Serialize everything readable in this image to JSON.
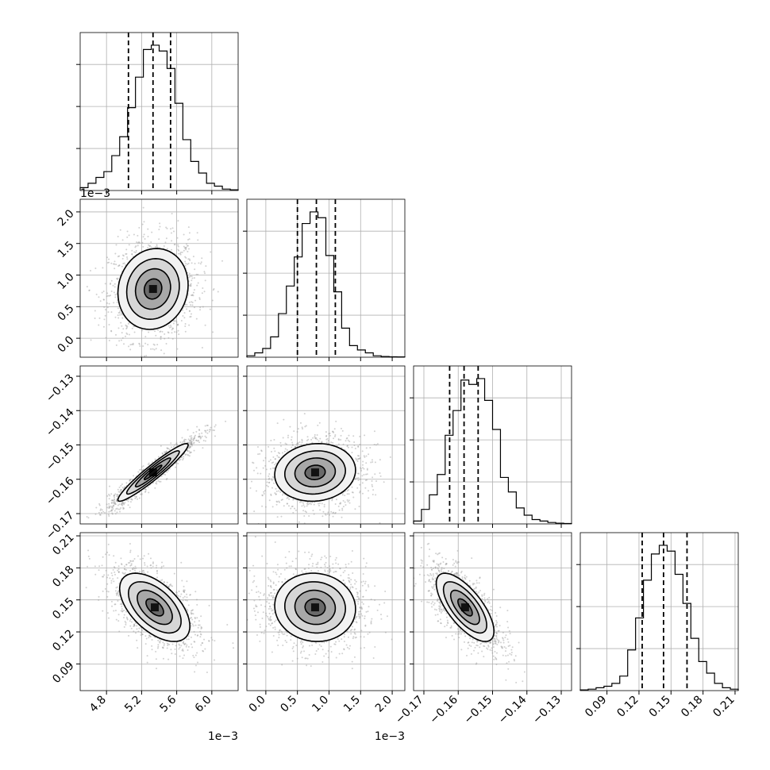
{
  "chart_data": {
    "type": "corner",
    "description_free": true,
    "parameters": [
      {
        "range": [
          4.5,
          6.3
        ],
        "ticks": [
          4.8,
          5.2,
          5.6,
          6.0
        ],
        "tick_labels": [
          "4.8",
          "5.2",
          "5.6",
          "6.0"
        ],
        "scale_note": "1e−3",
        "scale": 0.001
      },
      {
        "range": [
          -0.3,
          2.2
        ],
        "ticks": [
          0.0,
          0.5,
          1.0,
          1.5,
          2.0
        ],
        "tick_labels": [
          "0.0",
          "0.5",
          "1.0",
          "1.5",
          "2.0"
        ],
        "scale_note": "1e−3",
        "scale": 0.001
      },
      {
        "range": [
          -0.173,
          -0.127
        ],
        "ticks": [
          -0.17,
          -0.16,
          -0.15,
          -0.14,
          -0.13
        ],
        "tick_labels": [
          "−0.17",
          "−0.16",
          "−0.15",
          "−0.14",
          "−0.13"
        ],
        "scale_note": "",
        "scale": 1
      },
      {
        "range": [
          0.065,
          0.213
        ],
        "ticks": [
          0.09,
          0.12,
          0.15,
          0.18,
          0.21
        ],
        "tick_labels": [
          "0.09",
          "0.12",
          "0.15",
          "0.18",
          "0.21"
        ],
        "scale_note": "",
        "scale": 1
      }
    ],
    "quantiles": [
      [
        5.05,
        5.33,
        5.53
      ],
      [
        0.5,
        0.8,
        1.1
      ],
      [
        -0.1625,
        -0.1583,
        -0.1542
      ],
      [
        0.123,
        0.143,
        0.165
      ]
    ],
    "histograms": [
      {
        "edges_start": 4.5,
        "bin_width": 0.09,
        "counts": [
          0.02,
          0.05,
          0.09,
          0.13,
          0.24,
          0.37,
          0.57,
          0.78,
          0.97,
          1.0,
          0.96,
          0.84,
          0.6,
          0.35,
          0.2,
          0.12,
          0.05,
          0.03,
          0.01,
          0.005
        ]
      },
      {
        "edges_start": -0.3,
        "bin_width": 0.125,
        "counts": [
          0.01,
          0.03,
          0.06,
          0.14,
          0.3,
          0.49,
          0.69,
          0.92,
          1.0,
          0.96,
          0.7,
          0.45,
          0.2,
          0.08,
          0.05,
          0.03,
          0.01,
          0.005,
          0.003,
          0.002
        ]
      },
      {
        "edges_start": -0.173,
        "bin_width": 0.0023,
        "counts": [
          0.02,
          0.1,
          0.2,
          0.34,
          0.61,
          0.78,
          0.99,
          0.96,
          1.0,
          0.85,
          0.65,
          0.32,
          0.22,
          0.11,
          0.06,
          0.03,
          0.02,
          0.01,
          0.005,
          0.003
        ]
      },
      {
        "edges_start": 0.065,
        "bin_width": 0.0074,
        "counts": [
          0.005,
          0.01,
          0.02,
          0.03,
          0.05,
          0.1,
          0.28,
          0.5,
          0.76,
          0.94,
          1.0,
          0.96,
          0.8,
          0.6,
          0.36,
          0.2,
          0.12,
          0.05,
          0.02,
          0.01
        ]
      }
    ],
    "pairs": [
      {
        "x": 0,
        "y": 1,
        "center": [
          5.33,
          0.78
        ],
        "sigma": [
          0.2,
          0.32
        ],
        "corr": 0.1
      },
      {
        "x": 0,
        "y": 2,
        "center": [
          5.33,
          -0.158
        ],
        "sigma": [
          0.2,
          0.0042
        ],
        "corr": 0.95
      },
      {
        "x": 1,
        "y": 2,
        "center": [
          0.78,
          -0.158
        ],
        "sigma": [
          0.32,
          0.0042
        ],
        "corr": 0.08
      },
      {
        "x": 0,
        "y": 3,
        "center": [
          5.35,
          0.143
        ],
        "sigma": [
          0.2,
          0.016
        ],
        "corr": -0.55
      },
      {
        "x": 1,
        "y": 3,
        "center": [
          0.78,
          0.143
        ],
        "sigma": [
          0.32,
          0.016
        ],
        "corr": -0.05
      },
      {
        "x": 2,
        "y": 3,
        "center": [
          -0.158,
          0.143
        ],
        "sigma": [
          0.0042,
          0.016
        ],
        "corr": -0.7
      }
    ],
    "contour_levels_sigma": [
      0.5,
      1.0,
      1.5,
      2.0
    ],
    "grid": true,
    "colors": {
      "line": "#000000",
      "grid": "#b0b0b0",
      "points": "#9a9a9a"
    }
  }
}
